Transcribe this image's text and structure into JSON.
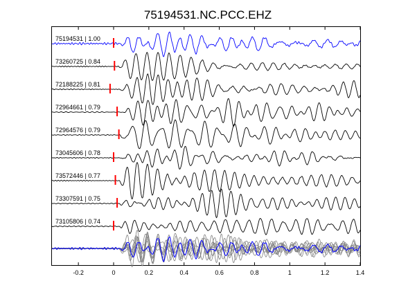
{
  "chart_data": {
    "type": "line",
    "title": "75194531.NC.PCC.EHZ",
    "xlim": [
      -0.35,
      1.4
    ],
    "xticks": [
      -0.2,
      0,
      0.2,
      0.4,
      0.6,
      0.8,
      1,
      1.2,
      1.4
    ],
    "xtick_labels": [
      "-0.2",
      "0",
      "0.2",
      "0.4",
      "0.6",
      "0.8",
      "1",
      "1.2",
      "1.4"
    ],
    "grid": false,
    "colors": {
      "reference": "#0000ff",
      "trace": "#000000",
      "overlay": "#808080",
      "pick": "#ff0000"
    },
    "traces": [
      {
        "label": "75194531 | 1.00",
        "pick_time": 0.0,
        "reference": true
      },
      {
        "label": "73260725 | 0.84",
        "pick_time": 0.005
      },
      {
        "label": "72188225 | 0.81",
        "pick_time": -0.02
      },
      {
        "label": "72964661 | 0.79",
        "pick_time": 0.02
      },
      {
        "label": "72964576 | 0.79",
        "pick_time": 0.03
      },
      {
        "label": "73045606 | 0.78",
        "pick_time": 0.0
      },
      {
        "label": "73572446 | 0.77",
        "pick_time": 0.01
      },
      {
        "label": "73307591 | 0.75",
        "pick_time": 0.02
      },
      {
        "label": "73105806 | 0.74",
        "pick_time": 0.0
      }
    ]
  }
}
